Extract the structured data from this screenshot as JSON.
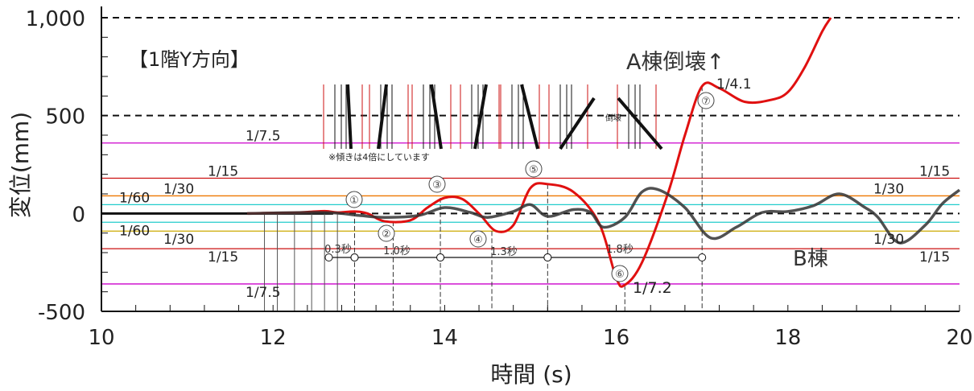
{
  "chart_data": {
    "type": "line",
    "title": "【1階Y方向】",
    "xlabel": "時間 (s)",
    "ylabel": "変位(mm)",
    "xlim": [
      10,
      20
    ],
    "ylim": [
      -500,
      1000
    ],
    "x_ticks": [
      10,
      12,
      14,
      16,
      18,
      20
    ],
    "x_tick_labels": [
      "10",
      "12",
      "14",
      "16",
      "18",
      "20"
    ],
    "y_ticks": [
      -500,
      0,
      500,
      1000
    ],
    "y_tick_labels": [
      "-500",
      "0",
      "500",
      "1,000"
    ],
    "grid": "dashed lines at 0, 500, 1000",
    "series": [
      {
        "name": "A棟",
        "color": "#e01010",
        "x": [
          11.7,
          12.0,
          12.3,
          12.6,
          12.75,
          12.95,
          13.1,
          13.3,
          13.6,
          13.8,
          14.0,
          14.2,
          14.4,
          14.6,
          14.8,
          15.0,
          15.2,
          15.5,
          15.8,
          16.0,
          16.1,
          16.3,
          16.6,
          16.8,
          17.0,
          17.2,
          17.5,
          17.8,
          18.0,
          18.2,
          18.4,
          18.5
        ],
        "y": [
          0,
          3,
          5,
          12,
          5,
          10,
          0,
          -40,
          -35,
          30,
          80,
          75,
          0,
          -90,
          -60,
          130,
          150,
          110,
          -50,
          -330,
          -365,
          -250,
          100,
          400,
          650,
          640,
          570,
          580,
          620,
          750,
          930,
          1000
        ]
      },
      {
        "name": "B棟",
        "color": "#333333",
        "x": [
          11.7,
          12.6,
          13.0,
          13.3,
          13.7,
          14.0,
          14.3,
          14.5,
          14.8,
          15.0,
          15.2,
          15.5,
          15.7,
          15.85,
          16.1,
          16.3,
          16.5,
          16.8,
          17.1,
          17.4,
          17.7,
          18.0,
          18.3,
          18.6,
          18.9,
          19.05,
          19.3,
          19.6,
          19.8,
          20.0
        ],
        "y": [
          0,
          5,
          -10,
          -20,
          -10,
          30,
          5,
          -20,
          10,
          45,
          -15,
          20,
          5,
          -70,
          -20,
          110,
          120,
          30,
          -125,
          -70,
          5,
          10,
          40,
          100,
          30,
          -20,
          -150,
          -60,
          50,
          120
        ]
      }
    ],
    "reference_lines": [
      {
        "value": 360,
        "color": "#cc00cc",
        "label": "1/7.5"
      },
      {
        "value": 180,
        "color": "#cc1111",
        "label": "1/15"
      },
      {
        "value": 90,
        "color": "#ee7700",
        "label": "1/30"
      },
      {
        "value": 45,
        "color": "#22cccc",
        "label": "1/60"
      },
      {
        "value": -45,
        "color": "#22cccc",
        "label": "1/60"
      },
      {
        "value": -90,
        "color": "#ccaa00",
        "label": "1/30"
      },
      {
        "value": -180,
        "color": "#cc1111",
        "label": "1/15"
      },
      {
        "value": -360,
        "color": "#cc00cc",
        "label": "1/7.5"
      }
    ],
    "right_labels": [
      {
        "value": 180,
        "label": "1/15"
      },
      {
        "value": 90,
        "label": "1/30"
      },
      {
        "value": -90,
        "label": "1/30"
      },
      {
        "value": -180,
        "label": "1/15"
      }
    ],
    "events": [
      {
        "id": "①",
        "t": 12.95,
        "y": 10
      },
      {
        "id": "②",
        "t": 13.4,
        "y": -40
      },
      {
        "id": "③",
        "t": 13.95,
        "y": 80
      },
      {
        "id": "④",
        "t": 14.55,
        "y": -90
      },
      {
        "id": "⑤",
        "t": 15.2,
        "y": 150
      },
      {
        "id": "⑥",
        "t": 16.1,
        "y": -365
      },
      {
        "id": "⑦",
        "t": 17.0,
        "y": 650
      }
    ],
    "periods": [
      {
        "label": "0.3秒",
        "t0": 12.65,
        "t1": 12.95
      },
      {
        "label": "1.0秒",
        "t0": 12.95,
        "t1": 13.95
      },
      {
        "label": "1.3秒",
        "t0": 13.95,
        "t1": 15.2
      },
      {
        "label": "1.8秒",
        "t0": 15.2,
        "t1": 17.0
      }
    ],
    "annotations": {
      "collapse": "A棟倒壊↑",
      "b_building": "B棟",
      "ratio_max": "1/4.1",
      "ratio_min": "1/7.2",
      "tilt_note": "※傾きは4倍にしています",
      "collapse_small": "倒壊"
    }
  }
}
